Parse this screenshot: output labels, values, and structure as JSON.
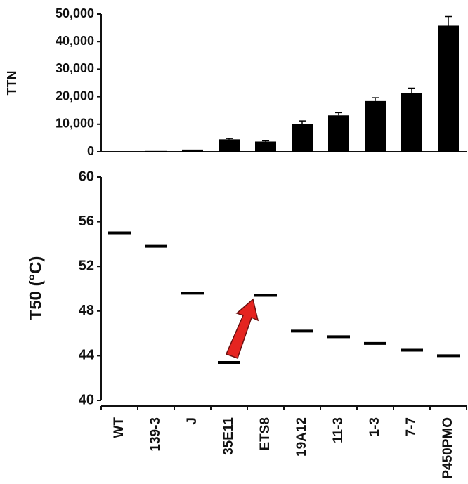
{
  "chart_data": [
    {
      "type": "bar",
      "y_label": "TTN",
      "categories": [
        "WT",
        "139-3",
        "J",
        "35E11",
        "ETS8",
        "19A12",
        "11-3",
        "1-3",
        "7-7",
        "P450PMO"
      ],
      "values": [
        0,
        300,
        800,
        4500,
        3700,
        10200,
        13200,
        18400,
        21300,
        45800
      ],
      "errors": [
        0,
        0,
        0,
        300,
        300,
        1000,
        1000,
        1200,
        1800,
        3300
      ],
      "color": "#000000",
      "ylim": [
        0,
        50000
      ],
      "yticks": [
        0,
        {
          "value": 10000,
          "label": "10,000"
        },
        {
          "value": 20000,
          "label": "20,000"
        },
        {
          "value": 30000,
          "label": "30,000"
        },
        {
          "value": 40000,
          "label": "40,000"
        },
        {
          "value": 50000,
          "label": "50,000"
        }
      ]
    },
    {
      "type": "dash",
      "y_label": "T50 (°C)",
      "categories": [
        "WT",
        "139-3",
        "J",
        "35E11",
        "ETS8",
        "19A12",
        "11-3",
        "1-3",
        "7-7",
        "P450PMO"
      ],
      "values": [
        55.0,
        53.8,
        49.6,
        43.4,
        49.4,
        46.2,
        45.7,
        45.1,
        44.5,
        44.0
      ],
      "color": "#000000",
      "ylim": [
        40,
        60
      ],
      "yticks": [
        40,
        44,
        48,
        52,
        56,
        60
      ]
    }
  ]
}
